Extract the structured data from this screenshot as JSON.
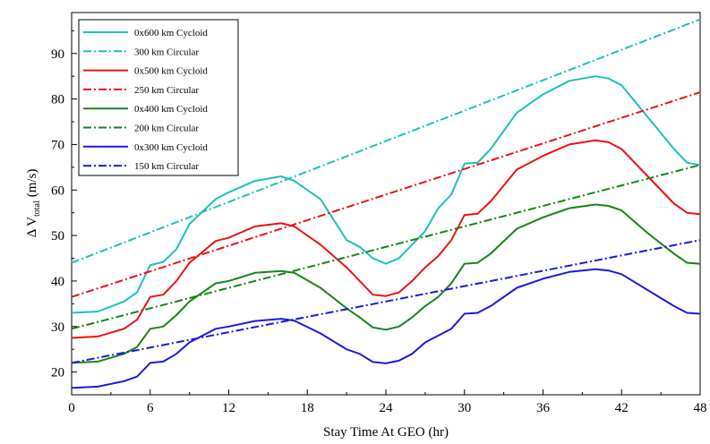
{
  "chart_data": {
    "type": "line",
    "title": "",
    "xlabel": "Stay Time At GEO (hr)",
    "ylabel": {
      "prefix": "Δ V",
      "subscript": "total",
      "suffix": "(m/s)"
    },
    "xlim": [
      0,
      48
    ],
    "ylim": [
      15,
      99
    ],
    "xticks": [
      0,
      6,
      12,
      18,
      24,
      30,
      36,
      42,
      48
    ],
    "yticks": [
      20,
      30,
      40,
      50,
      60,
      70,
      80,
      90
    ],
    "grid": false,
    "legend_position": "top-left",
    "series": [
      {
        "name": "0x600 km Cycloid",
        "color": "#1fbfbf",
        "dash": "solid",
        "points": [
          [
            0,
            33
          ],
          [
            2,
            33.3
          ],
          [
            4,
            35.5
          ],
          [
            5,
            37.5
          ],
          [
            6,
            43.5
          ],
          [
            7,
            44.2
          ],
          [
            8,
            47
          ],
          [
            9,
            52.5
          ],
          [
            11,
            58
          ],
          [
            12,
            59.5
          ],
          [
            14,
            62
          ],
          [
            16,
            63
          ],
          [
            17,
            62
          ],
          [
            19,
            58
          ],
          [
            21,
            49
          ],
          [
            22,
            47.5
          ],
          [
            23,
            45
          ],
          [
            24,
            43.8
          ],
          [
            25,
            45
          ],
          [
            26,
            48
          ],
          [
            27,
            51
          ],
          [
            28,
            56
          ],
          [
            29,
            59
          ],
          [
            30,
            65.8
          ],
          [
            31,
            66
          ],
          [
            32,
            69
          ],
          [
            34,
            77
          ],
          [
            36,
            81
          ],
          [
            38,
            84
          ],
          [
            40,
            85
          ],
          [
            41,
            84.5
          ],
          [
            42,
            83
          ],
          [
            44,
            76
          ],
          [
            46,
            69
          ],
          [
            47,
            66
          ],
          [
            48,
            65.5
          ]
        ]
      },
      {
        "name": "300 km Circular",
        "color": "#1fbfbf",
        "dash": "dashdot",
        "points": [
          [
            0,
            44
          ],
          [
            48,
            97.5
          ]
        ]
      },
      {
        "name": "0x500 km Cycloid",
        "color": "#ee1111",
        "dash": "solid",
        "points": [
          [
            0,
            27.5
          ],
          [
            2,
            27.8
          ],
          [
            4,
            29.5
          ],
          [
            5,
            31.5
          ],
          [
            6,
            36.5
          ],
          [
            7,
            37
          ],
          [
            8,
            40
          ],
          [
            9,
            44
          ],
          [
            11,
            48.8
          ],
          [
            12,
            49.5
          ],
          [
            14,
            52
          ],
          [
            16,
            52.7
          ],
          [
            17,
            52
          ],
          [
            19,
            48
          ],
          [
            21,
            43
          ],
          [
            22,
            40
          ],
          [
            23,
            37
          ],
          [
            24,
            36.7
          ],
          [
            25,
            37.5
          ],
          [
            26,
            40
          ],
          [
            27,
            43
          ],
          [
            28,
            45.5
          ],
          [
            29,
            49
          ],
          [
            30,
            54.5
          ],
          [
            31,
            54.8
          ],
          [
            32,
            57.5
          ],
          [
            34,
            64.5
          ],
          [
            36,
            67.5
          ],
          [
            38,
            70
          ],
          [
            40,
            70.9
          ],
          [
            41,
            70.5
          ],
          [
            42,
            69
          ],
          [
            44,
            63
          ],
          [
            46,
            57
          ],
          [
            47,
            55
          ],
          [
            48,
            54.7
          ]
        ]
      },
      {
        "name": "250 km Circular",
        "color": "#ee1111",
        "dash": "dashdot",
        "points": [
          [
            0,
            36.5
          ],
          [
            48,
            81.5
          ]
        ]
      },
      {
        "name": "0x400 km Cycloid",
        "color": "#168516",
        "dash": "solid",
        "points": [
          [
            0,
            22
          ],
          [
            2,
            22.3
          ],
          [
            4,
            24
          ],
          [
            5,
            25.5
          ],
          [
            6,
            29.5
          ],
          [
            7,
            30
          ],
          [
            8,
            32.5
          ],
          [
            9,
            35.5
          ],
          [
            11,
            39.5
          ],
          [
            12,
            40
          ],
          [
            14,
            41.8
          ],
          [
            16,
            42.2
          ],
          [
            17,
            41.8
          ],
          [
            19,
            38.5
          ],
          [
            21,
            34
          ],
          [
            22,
            32
          ],
          [
            23,
            29.8
          ],
          [
            24,
            29.3
          ],
          [
            25,
            30
          ],
          [
            26,
            32
          ],
          [
            27,
            34.5
          ],
          [
            28,
            36.5
          ],
          [
            29,
            39.5
          ],
          [
            30,
            43.8
          ],
          [
            31,
            44
          ],
          [
            32,
            46
          ],
          [
            34,
            51.5
          ],
          [
            36,
            54
          ],
          [
            38,
            56
          ],
          [
            40,
            56.8
          ],
          [
            41,
            56.5
          ],
          [
            42,
            55.5
          ],
          [
            44,
            50.5
          ],
          [
            46,
            46
          ],
          [
            47,
            44
          ],
          [
            48,
            43.8
          ]
        ]
      },
      {
        "name": "200 km Circular",
        "color": "#168516",
        "dash": "dashdot",
        "points": [
          [
            0,
            29.5
          ],
          [
            48,
            65.5
          ]
        ]
      },
      {
        "name": "0x300 km Cycloid",
        "color": "#1a1adc",
        "dash": "solid",
        "points": [
          [
            0,
            16.5
          ],
          [
            2,
            16.8
          ],
          [
            4,
            18
          ],
          [
            5,
            19
          ],
          [
            6,
            22
          ],
          [
            7,
            22.3
          ],
          [
            8,
            24
          ],
          [
            9,
            26.5
          ],
          [
            11,
            29.5
          ],
          [
            12,
            30
          ],
          [
            14,
            31.2
          ],
          [
            16,
            31.7
          ],
          [
            17,
            31.3
          ],
          [
            19,
            28.5
          ],
          [
            21,
            25
          ],
          [
            22,
            24
          ],
          [
            23,
            22.2
          ],
          [
            24,
            21.9
          ],
          [
            25,
            22.5
          ],
          [
            26,
            24
          ],
          [
            27,
            26.5
          ],
          [
            28,
            28
          ],
          [
            29,
            29.5
          ],
          [
            30,
            32.8
          ],
          [
            31,
            33
          ],
          [
            32,
            34.5
          ],
          [
            34,
            38.5
          ],
          [
            36,
            40.5
          ],
          [
            38,
            42
          ],
          [
            40,
            42.6
          ],
          [
            41,
            42.3
          ],
          [
            42,
            41.5
          ],
          [
            44,
            38
          ],
          [
            46,
            34.5
          ],
          [
            47,
            33
          ],
          [
            48,
            32.8
          ]
        ]
      },
      {
        "name": "150 km Circular",
        "color": "#1a1adc",
        "dash": "dashdot",
        "points": [
          [
            0,
            22
          ],
          [
            48,
            49
          ]
        ]
      }
    ]
  }
}
